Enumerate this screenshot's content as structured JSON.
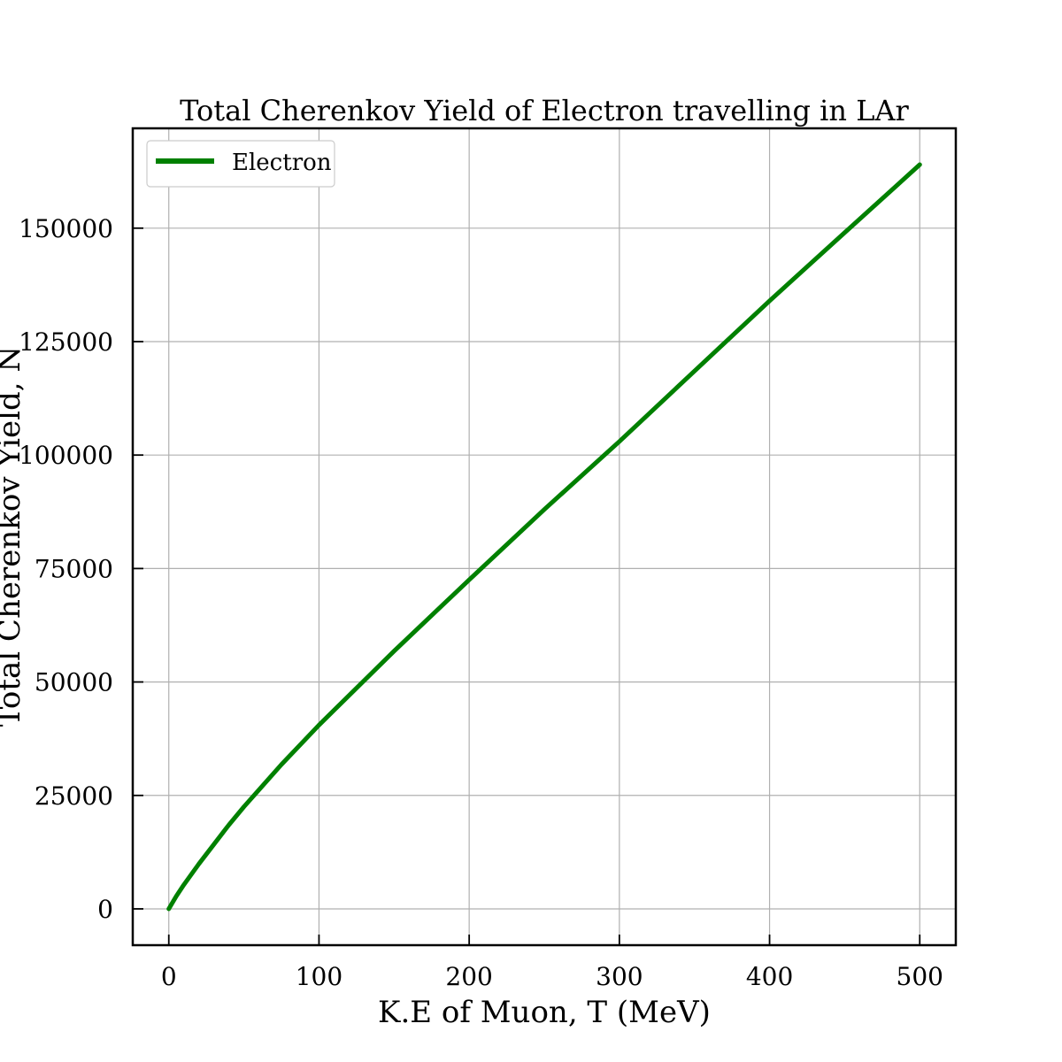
{
  "chart_data": {
    "type": "line",
    "title": "Total Cherenkov Yield of Electron travelling in LAr",
    "xlabel": "K.E of Muon, T (MeV)",
    "ylabel": "Total Cherenkov Yield, N",
    "xlim": [
      -24,
      524
    ],
    "ylim": [
      -8000,
      172000
    ],
    "x_ticks": [
      0,
      100,
      200,
      300,
      400,
      500
    ],
    "y_ticks": [
      0,
      25000,
      50000,
      75000,
      100000,
      125000,
      150000
    ],
    "grid": true,
    "legend_position": "top-left",
    "series": [
      {
        "name": "Electron",
        "color": "#008000",
        "x": [
          0,
          5,
          10,
          20,
          30,
          40,
          50,
          75,
          100,
          150,
          200,
          250,
          300,
          350,
          400,
          450,
          500
        ],
        "y": [
          0,
          2800,
          5300,
          9900,
          14200,
          18500,
          22500,
          31800,
          40500,
          56800,
          72500,
          88000,
          103000,
          118500,
          134000,
          149000,
          164000
        ]
      }
    ]
  }
}
